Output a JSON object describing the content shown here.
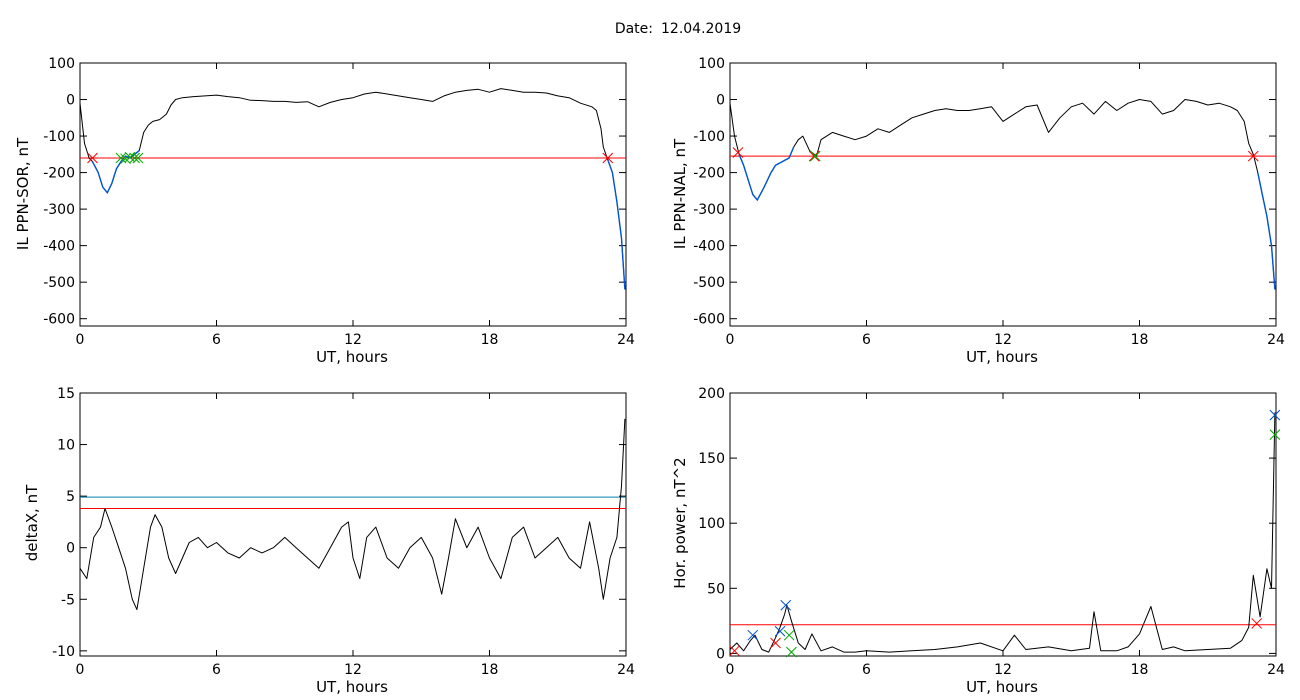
{
  "figure": {
    "title_label": "Date:",
    "title_date": "12.04.2019"
  },
  "chart_data": [
    {
      "type": "line",
      "xlabel": "UT, hours",
      "ylabel": "IL PPN-SOR, nT",
      "xlim": [
        0,
        24
      ],
      "ylim": [
        -620,
        100
      ],
      "xticks": [
        0,
        6,
        12,
        18,
        24
      ],
      "yticks": [
        100,
        0,
        -100,
        -200,
        -300,
        -400,
        -500,
        -600
      ],
      "grid": false,
      "series": [
        {
          "color": "#000000",
          "x": [
            0,
            0.2,
            0.4,
            0.55,
            0.8,
            1.0,
            1.2,
            1.4,
            1.6,
            1.8,
            2.0,
            2.2,
            2.4,
            2.6,
            2.8,
            3.0,
            3.2,
            3.5,
            3.8,
            4.0,
            4.2,
            4.5,
            5.0,
            5.5,
            6.0,
            6.5,
            7.0,
            7.5,
            8.0,
            8.5,
            9.0,
            9.5,
            10.0,
            10.5,
            11.0,
            11.5,
            12.0,
            12.5,
            13.0,
            13.5,
            14.0,
            14.5,
            15.0,
            15.5,
            16.0,
            16.5,
            17.0,
            17.5,
            18.0,
            18.5,
            19.0,
            19.5,
            20.0,
            20.5,
            21.0,
            21.5,
            22.0,
            22.5,
            22.7,
            22.9,
            23.0,
            23.2,
            23.4,
            23.6,
            23.8,
            23.95
          ],
          "y": [
            -10,
            -120,
            -160,
            -170,
            -200,
            -240,
            -255,
            -230,
            -190,
            -170,
            -155,
            -160,
            -150,
            -140,
            -90,
            -70,
            -60,
            -55,
            -40,
            -15,
            0,
            5,
            8,
            10,
            12,
            8,
            5,
            -2,
            -3,
            -5,
            -5,
            -8,
            -6,
            -20,
            -8,
            0,
            5,
            15,
            20,
            15,
            10,
            5,
            0,
            -5,
            10,
            20,
            25,
            28,
            20,
            30,
            25,
            20,
            20,
            18,
            10,
            5,
            -10,
            -20,
            -30,
            -80,
            -130,
            -165,
            -200,
            -280,
            -380,
            -520
          ]
        }
      ],
      "reference_lines": [
        {
          "y": -160,
          "color": "#ff0000"
        }
      ],
      "highlight_segments": [
        {
          "color": "#0055d4",
          "x_start": 0.55,
          "x_end": 2.6
        },
        {
          "color": "#0055d4",
          "x_start": 23.2,
          "x_end": 23.95
        }
      ],
      "markers": [
        {
          "x": 0.55,
          "y": -160,
          "color": "#ff0000"
        },
        {
          "x": 1.8,
          "y": -160,
          "color": "#00aa00"
        },
        {
          "x": 2.0,
          "y": -162,
          "color": "#00aa00"
        },
        {
          "x": 2.2,
          "y": -158,
          "color": "#00aa00"
        },
        {
          "x": 2.4,
          "y": -160,
          "color": "#00aa00"
        },
        {
          "x": 2.55,
          "y": -160,
          "color": "#00aa00"
        },
        {
          "x": 23.2,
          "y": -160,
          "color": "#ff0000"
        }
      ]
    },
    {
      "type": "line",
      "xlabel": "UT, hours",
      "ylabel": "IL PPN-NAL, nT",
      "xlim": [
        0,
        24
      ],
      "ylim": [
        -620,
        100
      ],
      "xticks": [
        0,
        6,
        12,
        18,
        24
      ],
      "yticks": [
        100,
        0,
        -100,
        -200,
        -300,
        -400,
        -500,
        -600
      ],
      "grid": false,
      "series": [
        {
          "color": "#000000",
          "x": [
            0,
            0.2,
            0.4,
            0.6,
            0.8,
            1.0,
            1.2,
            1.5,
            1.8,
            2.0,
            2.3,
            2.6,
            2.8,
            3.0,
            3.2,
            3.5,
            3.8,
            4.0,
            4.5,
            5.0,
            5.5,
            6.0,
            6.5,
            7.0,
            7.5,
            8.0,
            8.5,
            9.0,
            9.5,
            10.0,
            10.5,
            11.0,
            11.5,
            12.0,
            12.5,
            13.0,
            13.5,
            14.0,
            14.5,
            15.0,
            15.5,
            16.0,
            16.5,
            17.0,
            17.5,
            18.0,
            18.5,
            19.0,
            19.5,
            20.0,
            20.5,
            21.0,
            21.5,
            22.0,
            22.3,
            22.6,
            22.8,
            23.0,
            23.2,
            23.4,
            23.6,
            23.8,
            23.95
          ],
          "y": [
            -10,
            -100,
            -150,
            -180,
            -220,
            -260,
            -275,
            -240,
            -200,
            -180,
            -170,
            -160,
            -130,
            -110,
            -100,
            -140,
            -155,
            -110,
            -90,
            -100,
            -110,
            -100,
            -80,
            -90,
            -70,
            -50,
            -40,
            -30,
            -25,
            -30,
            -30,
            -25,
            -20,
            -60,
            -40,
            -20,
            -15,
            -90,
            -50,
            -20,
            -10,
            -40,
            -5,
            -30,
            -10,
            0,
            -5,
            -40,
            -30,
            0,
            -5,
            -15,
            -10,
            -20,
            -30,
            -60,
            -120,
            -150,
            -200,
            -260,
            -320,
            -400,
            -520
          ]
        }
      ],
      "reference_lines": [
        {
          "y": -155,
          "color": "#ff0000"
        }
      ],
      "highlight_segments": [
        {
          "color": "#0055d4",
          "x_start": 0.4,
          "x_end": 2.8
        },
        {
          "color": "#0055d4",
          "x_start": 23.2,
          "x_end": 23.95
        }
      ],
      "markers": [
        {
          "x": 0.35,
          "y": -145,
          "color": "#ff0000"
        },
        {
          "x": 3.7,
          "y": -155,
          "color": "#ff0000"
        },
        {
          "x": 3.75,
          "y": -155,
          "color": "#00aa00"
        },
        {
          "x": 23.0,
          "y": -155,
          "color": "#ff0000"
        }
      ]
    },
    {
      "type": "line",
      "xlabel": "UT, hours",
      "ylabel": "deltaX, nT",
      "xlim": [
        0,
        24
      ],
      "ylim": [
        -10.5,
        15
      ],
      "xticks": [
        0,
        6,
        12,
        18,
        24
      ],
      "yticks": [
        15,
        10,
        5,
        0,
        -5,
        -10
      ],
      "grid": false,
      "series": [
        {
          "color": "#000000",
          "x": [
            0,
            0.3,
            0.6,
            0.9,
            1.1,
            1.4,
            1.7,
            2.0,
            2.3,
            2.5,
            2.8,
            3.1,
            3.3,
            3.6,
            3.9,
            4.2,
            4.5,
            4.8,
            5.2,
            5.6,
            6.0,
            6.5,
            7.0,
            7.5,
            8.0,
            8.5,
            9.0,
            9.5,
            10.0,
            10.5,
            11.0,
            11.5,
            11.8,
            12.0,
            12.3,
            12.6,
            13.0,
            13.5,
            14.0,
            14.5,
            15.0,
            15.5,
            15.9,
            16.2,
            16.5,
            17.0,
            17.5,
            18.0,
            18.5,
            19.0,
            19.5,
            20.0,
            20.5,
            21.0,
            21.5,
            22.0,
            22.4,
            22.8,
            23.0,
            23.3,
            23.6,
            23.8,
            23.95
          ],
          "y": [
            -2,
            -3,
            1,
            2,
            3.8,
            2,
            0,
            -2,
            -5,
            -6,
            -2,
            2,
            3.2,
            2,
            -1,
            -2.5,
            -1,
            0.5,
            1,
            0,
            0.5,
            -0.5,
            -1,
            0,
            -0.5,
            0,
            1,
            0,
            -1,
            -2,
            0,
            2,
            2.5,
            -1,
            -3,
            1,
            2,
            -1,
            -2,
            0,
            1,
            -1,
            -4.5,
            -1,
            2.8,
            0,
            2,
            -1,
            -3,
            1,
            2,
            -1,
            0,
            1,
            -1,
            -2,
            2.5,
            -2,
            -5,
            -1,
            1,
            6,
            12.5
          ]
        }
      ],
      "reference_lines": [
        {
          "y": 4.9,
          "color": "#007fae"
        },
        {
          "y": 3.8,
          "color": "#ff0000"
        }
      ],
      "markers": []
    },
    {
      "type": "line",
      "xlabel": "UT, hours",
      "ylabel": "Hor. power, nT^2",
      "xlim": [
        0,
        24
      ],
      "ylim": [
        -2,
        200
      ],
      "xticks": [
        0,
        6,
        12,
        18,
        24
      ],
      "yticks": [
        200,
        150,
        100,
        50,
        0
      ],
      "grid": false,
      "series": [
        {
          "color": "#000000",
          "x": [
            0,
            0.3,
            0.6,
            0.9,
            1.1,
            1.4,
            1.7,
            2.0,
            2.2,
            2.4,
            2.5,
            2.7,
            3.0,
            3.3,
            3.6,
            4.0,
            4.5,
            5.0,
            5.5,
            6.0,
            7.0,
            8.0,
            9.0,
            10.0,
            11.0,
            12.0,
            12.5,
            13.0,
            14.0,
            15.0,
            15.8,
            16.0,
            16.3,
            17.0,
            17.5,
            18.0,
            18.5,
            19.0,
            19.5,
            20.0,
            21.0,
            22.0,
            22.5,
            22.8,
            23.0,
            23.3,
            23.6,
            23.8,
            23.95
          ],
          "y": [
            3,
            8,
            2,
            10,
            14,
            3,
            1,
            12,
            20,
            30,
            37,
            25,
            8,
            3,
            15,
            2,
            5,
            1,
            1,
            2,
            1,
            2,
            3,
            5,
            8,
            2,
            14,
            3,
            5,
            2,
            4,
            32,
            2,
            2,
            5,
            15,
            36,
            3,
            5,
            2,
            3,
            4,
            10,
            20,
            60,
            28,
            65,
            50,
            185
          ]
        }
      ],
      "reference_lines": [
        {
          "y": 22,
          "color": "#ff0000"
        }
      ],
      "markers": [
        {
          "x": 0.2,
          "y": 2,
          "color": "#ff0000"
        },
        {
          "x": 1.0,
          "y": 14,
          "color": "#0055d4"
        },
        {
          "x": 2.0,
          "y": 8,
          "color": "#ff0000"
        },
        {
          "x": 2.2,
          "y": 17,
          "color": "#0055d4"
        },
        {
          "x": 2.45,
          "y": 37,
          "color": "#0055d4"
        },
        {
          "x": 2.6,
          "y": 14,
          "color": "#00aa00"
        },
        {
          "x": 2.7,
          "y": 1,
          "color": "#00aa00"
        },
        {
          "x": 23.15,
          "y": 23,
          "color": "#ff0000"
        },
        {
          "x": 23.95,
          "y": 183,
          "color": "#0055d4"
        },
        {
          "x": 23.95,
          "y": 168,
          "color": "#00aa00"
        }
      ]
    }
  ]
}
